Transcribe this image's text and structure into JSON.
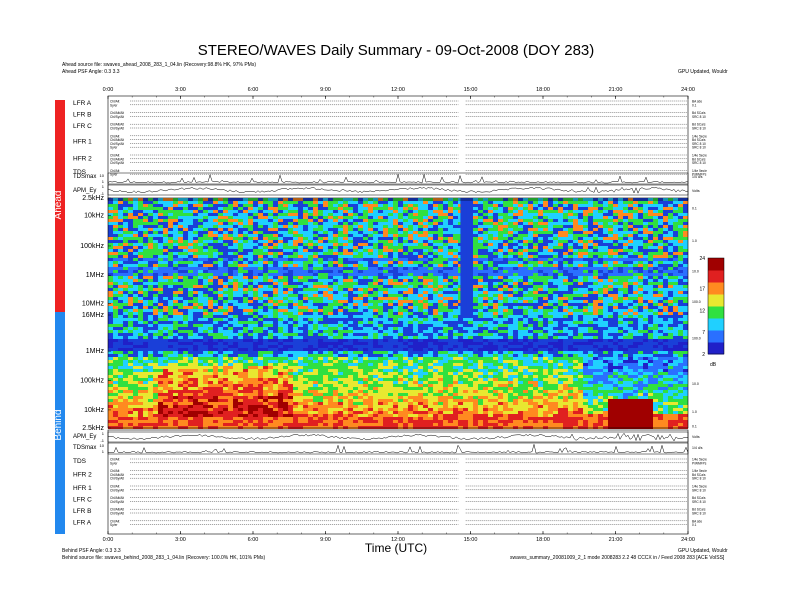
{
  "page": {
    "title": "STEREO/WAVES Daily Summary - 09-Oct-2008 (DOY 283)",
    "header_left_1": "Ahead source file: swaves_ahead_2008_283_1_04.lin (Recovery:98.8% HK, 97% PMs)",
    "header_left_2": "Ahead PSF Angle: 0.3 3.3",
    "header_right": "GPU Updated, Wouldr",
    "footer_left_1": "Behind PSF Angle: 0.3 3.3",
    "footer_left_2": "Behind source file: swaves_behind_2008_283_1_04.lin (Recovery: 100.0% HK, 101% PMs)",
    "footer_right_1": "GPU Updated, Wouldr",
    "footer_right_2": "swaves_summary_20081009_2_1 mode 2008283 2.2 48 CCCX in / Feed 2008 283 [ACE VolSS]",
    "x_axis_title": "Time (UTC)",
    "side_label_ahead": "Ahead",
    "side_label_behind": "Behind",
    "colorbar_unit": "dB",
    "colors": {
      "ahead_bar": "#ee2222",
      "behind_bar": "#2288ee",
      "background_blue": "#1a3fd8"
    }
  },
  "chart_data": {
    "type": "heatmap",
    "title": "STEREO/WAVES Daily Summary - 09-Oct-2008 (DOY 283)",
    "xlabel": "Time (UTC)",
    "x_ticks": [
      "0:00",
      "3:00",
      "6:00",
      "9:00",
      "12:00",
      "15:00",
      "18:00",
      "21:00",
      "24:00"
    ],
    "xlim": [
      "0:00",
      "24:00"
    ],
    "ahead": {
      "label": "Ahead",
      "rows_top": [
        {
          "name": "LFR A",
          "flags_left": [
            "Chl/Alt",
            "Sy/er"
          ],
          "flags_right": [
            "BA sde",
            "0.1"
          ]
        },
        {
          "name": "LFR B",
          "flags_left": [
            "Chl/Alt/Alt",
            "Chl/Sy/Alt"
          ],
          "flags_right": [
            "Bd SCa/s",
            "SRC 8 10"
          ]
        },
        {
          "name": "LFR C",
          "flags_left": [
            "Chl/Alt/Alt",
            "Chl/Sy/Alt"
          ],
          "flags_right": [
            "Bd SCa/s",
            "SRC 8 10"
          ]
        },
        {
          "name": "HFR 1",
          "flags_left": [
            "Chl/Alt",
            "Chl/Alt/Alt",
            "Chl/Sy/Alt",
            "Sy/er"
          ],
          "flags_right": [
            "1/4e 5ec/e",
            "Bd SCa/s",
            "SRC 8 10",
            "SRC 8 10"
          ]
        },
        {
          "name": "HFR 2",
          "flags_left": [
            "Chl/Alt",
            "Chl/Alt/Alt",
            "Chl/Sy/Alt"
          ],
          "flags_right": [
            "1/4e 5ec/e",
            "Bd SCa/s",
            "SRC 8 10"
          ]
        },
        {
          "name": "TDS",
          "flags_left": [
            "Chl/Alt",
            "Sy/er"
          ],
          "flags_right": [
            "1/4e 5ec/e",
            "P/WMFPs"
          ]
        }
      ],
      "tds_max": {
        "name": "TDSmax",
        "yticks": [
          "10",
          "1"
        ],
        "unit_right": "1/4 d/s"
      },
      "apm": {
        "name": "APM_Ey",
        "yticks": [
          "1",
          "-1"
        ],
        "unit_right": "Volts"
      },
      "freq_ticks": [
        "2.5kHz",
        "10kHz",
        "100kHz",
        "1MHz",
        "10MHz",
        "16MHz"
      ],
      "freq_ticks_right": [
        "0.1",
        "1.0",
        "10.0",
        "100.0"
      ],
      "events": [
        {
          "type": "data_gap",
          "start": "14:35",
          "end": "14:50",
          "freq_from": "2.5kHz",
          "freq_to": "16MHz"
        }
      ]
    },
    "behind": {
      "label": "Behind",
      "rows_bottom": [
        {
          "name": "TDS",
          "flags_left": [
            "Chl/Alt",
            "Sy/er"
          ],
          "flags_right": [
            "1/4e 5ec/e",
            "P/WMFPs"
          ]
        },
        {
          "name": "HFR 2",
          "flags_left": [
            "Chl/Alt",
            "Chl/Alt/Alt",
            "Chl/Sy/Alt"
          ],
          "flags_right": [
            "1/4e 5ec/e",
            "Bd SCa/s",
            "SRC 8 10"
          ]
        },
        {
          "name": "HFR 1",
          "flags_left": [
            "Chl/Alt",
            "Chl/Sy/Alt"
          ],
          "flags_right": [
            "1/4e 5ec/e",
            "SRC 8 10"
          ]
        },
        {
          "name": "LFR C",
          "flags_left": [
            "Chl/Alt/Alt",
            "Chl/Sy/Alt"
          ],
          "flags_right": [
            "Bd SCa/s",
            "SRC 8 10"
          ]
        },
        {
          "name": "LFR B",
          "flags_left": [
            "Chl/Alt/Alt",
            "Chl/Sy/Alt"
          ],
          "flags_right": [
            "Bd SCa/s",
            "SRC 8 10"
          ]
        },
        {
          "name": "LFR A",
          "flags_left": [
            "Chl/Alt",
            "Sy/er"
          ],
          "flags_right": [
            "BA sde",
            "0.1"
          ]
        }
      ],
      "tds_max": {
        "name": "TDSmax",
        "yticks": [
          "10",
          "1"
        ],
        "unit_right": "1/4 d/s"
      },
      "apm": {
        "name": "APM_Ey",
        "yticks": [
          "1",
          "-1"
        ],
        "unit_right": "Volts"
      },
      "freq_ticks": [
        "1MHz",
        "100kHz",
        "10kHz",
        "2.5kHz"
      ],
      "freq_ticks_right": [
        "100.0",
        "10.0",
        "1.0",
        "0.1"
      ],
      "events": [
        {
          "type": "enhanced_emission",
          "start": "2:00",
          "end": "7:30",
          "freq_from": "2.5kHz",
          "freq_to": "300kHz"
        },
        {
          "type": "intense_low_freq",
          "start": "20:30",
          "end": "22:30",
          "freq_from": "2.5kHz",
          "freq_to": "10kHz"
        }
      ]
    },
    "colorbar": {
      "ticks": [
        2,
        7,
        12,
        17,
        24
      ],
      "range": [
        2,
        24
      ],
      "unit": "dB",
      "colormap": [
        "#2020c8",
        "#2a70ff",
        "#20d0ff",
        "#30e040",
        "#e8e830",
        "#ff8a20",
        "#e02020",
        "#a00000",
        "#6a0090"
      ]
    }
  }
}
